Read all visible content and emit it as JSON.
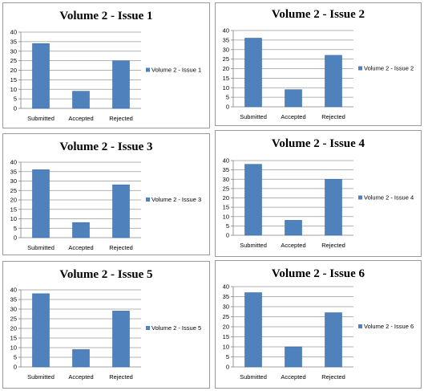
{
  "colors": {
    "bar": "#4f81bd",
    "bar_edge": "#3d6da6"
  },
  "chart_data": [
    {
      "type": "bar",
      "title": "Volume 2 - Issue 1",
      "categories": [
        "Submitted",
        "Accepted",
        "Rejected"
      ],
      "series": [
        {
          "name": "Volume 2 - Issue 1",
          "values": [
            34,
            9,
            25
          ]
        }
      ],
      "ylim": [
        0,
        40
      ],
      "yticks": [
        "0",
        "5",
        "10",
        "15",
        "20",
        "25",
        "30",
        "35",
        "40"
      ],
      "grid": true,
      "legend": "right"
    },
    {
      "type": "bar",
      "title": "Volume 2 - Issue 2",
      "categories": [
        "Submitted",
        "Accepted",
        "Rejected"
      ],
      "series": [
        {
          "name": "Volume 2 - Issue 2",
          "values": [
            36,
            9,
            27
          ]
        }
      ],
      "ylim": [
        0,
        40
      ],
      "yticks": [
        "0",
        "5",
        "10",
        "15",
        "20",
        "25",
        "30",
        "35",
        "40"
      ],
      "grid": true,
      "legend": "right"
    },
    {
      "type": "bar",
      "title": "Volume 2 - Issue 3",
      "categories": [
        "Submitted",
        "Accepted",
        "Rejected"
      ],
      "series": [
        {
          "name": "Volume 2 - Issue 3",
          "values": [
            36,
            8,
            28
          ]
        }
      ],
      "ylim": [
        0,
        40
      ],
      "yticks": [
        "0",
        "5",
        "10",
        "15",
        "20",
        "25",
        "30",
        "35",
        "40"
      ],
      "grid": true,
      "legend": "right"
    },
    {
      "type": "bar",
      "title": "Volume 2 - Issue 4",
      "categories": [
        "Submitted",
        "Accepted",
        "Rejected"
      ],
      "series": [
        {
          "name": "Volume 2 - Issue 4",
          "values": [
            38,
            8,
            30
          ]
        }
      ],
      "ylim": [
        0,
        40
      ],
      "yticks": [
        "0",
        "5",
        "10",
        "15",
        "20",
        "25",
        "30",
        "35",
        "40"
      ],
      "grid": true,
      "legend": "right"
    },
    {
      "type": "bar",
      "title": "Volume 2 - Issue 5",
      "categories": [
        "Submitted",
        "Accepted",
        "Rejected"
      ],
      "series": [
        {
          "name": "Volume 2 - Issue 5",
          "values": [
            38,
            9,
            29
          ]
        }
      ],
      "ylim": [
        0,
        40
      ],
      "yticks": [
        "0",
        "5",
        "10",
        "15",
        "20",
        "25",
        "30",
        "35",
        "40"
      ],
      "grid": true,
      "legend": "right"
    },
    {
      "type": "bar",
      "title": "Volume 2 - Issue 6",
      "categories": [
        "Submitted",
        "Accepted",
        "Rejected"
      ],
      "series": [
        {
          "name": "Volume 2 - Issue 6",
          "values": [
            37,
            10,
            27
          ]
        }
      ],
      "ylim": [
        0,
        40
      ],
      "yticks": [
        "0",
        "5",
        "10",
        "15",
        "20",
        "25",
        "30",
        "35",
        "40"
      ],
      "grid": true,
      "legend": "right"
    }
  ]
}
